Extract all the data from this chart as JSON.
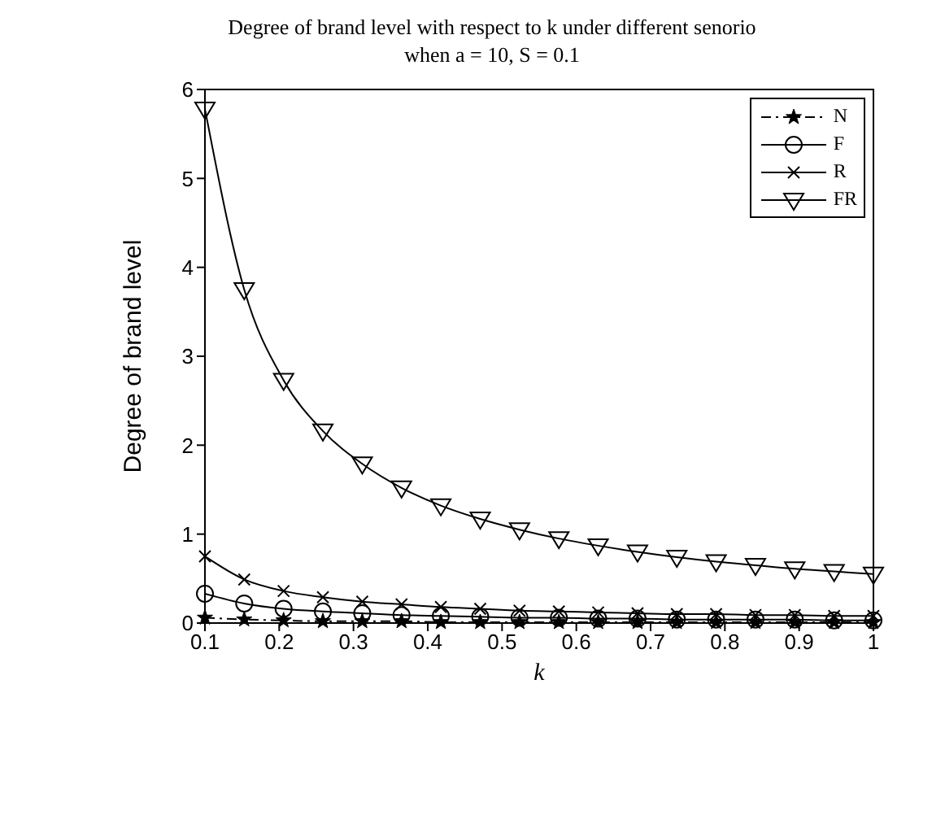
{
  "chart_data": {
    "type": "line",
    "title": "Degree of brand level with respect to k under different senorio",
    "subtitle": "when a = 10, S = 0.1",
    "xlabel": "k",
    "ylabel": "Degree of brand level",
    "x": [
      0.1,
      0.1529,
      0.2059,
      0.2588,
      0.3118,
      0.3647,
      0.4176,
      0.4706,
      0.5235,
      0.5765,
      0.6294,
      0.6824,
      0.7353,
      0.7882,
      0.8412,
      0.8941,
      0.9471,
      1.0
    ],
    "series": [
      {
        "name": "N",
        "color": "#000000",
        "marker": "star",
        "line_style": "dashed",
        "values": [
          0.06,
          0.04,
          0.03,
          0.02,
          0.02,
          0.02,
          0.01,
          0.01,
          0.01,
          0.01,
          0.01,
          0.01,
          0.01,
          0.01,
          0.01,
          0.01,
          0.01,
          0.01
        ]
      },
      {
        "name": "F",
        "color": "#000000",
        "marker": "circle",
        "line_style": "solid",
        "values": [
          0.33,
          0.22,
          0.16,
          0.13,
          0.11,
          0.09,
          0.08,
          0.07,
          0.06,
          0.06,
          0.05,
          0.05,
          0.04,
          0.04,
          0.04,
          0.04,
          0.03,
          0.03
        ]
      },
      {
        "name": "R",
        "color": "#000000",
        "marker": "cross",
        "line_style": "solid",
        "values": [
          0.75,
          0.49,
          0.36,
          0.29,
          0.24,
          0.21,
          0.18,
          0.16,
          0.14,
          0.13,
          0.12,
          0.11,
          0.1,
          0.1,
          0.09,
          0.09,
          0.08,
          0.08
        ]
      },
      {
        "name": "FR",
        "color": "#000000",
        "marker": "triangle",
        "line_style": "solid",
        "values": [
          5.78,
          3.75,
          2.73,
          2.16,
          1.79,
          1.52,
          1.32,
          1.17,
          1.05,
          0.95,
          0.87,
          0.8,
          0.74,
          0.69,
          0.65,
          0.61,
          0.58,
          0.55
        ]
      }
    ],
    "xlim": [
      0.1,
      1
    ],
    "xticks": [
      0.1,
      0.2,
      0.3,
      0.4,
      0.5,
      0.6,
      0.7,
      0.8,
      0.9,
      1
    ],
    "ylim": [
      0,
      6
    ],
    "yticks": [
      0,
      1,
      2,
      3,
      4,
      5,
      6
    ],
    "grid": false,
    "legend": "top right"
  }
}
